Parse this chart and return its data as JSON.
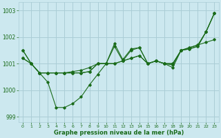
{
  "background_color": "#cce8ef",
  "grid_color": "#aacdd6",
  "line_color": "#1a6b1a",
  "xlabel": "Graphe pression niveau de la mer (hPa)",
  "ylim": [
    998.8,
    1003.3
  ],
  "xlim": [
    -0.5,
    23.5
  ],
  "yticks": [
    999,
    1000,
    1001,
    1002,
    1003
  ],
  "xticks": [
    0,
    1,
    2,
    3,
    4,
    5,
    6,
    7,
    8,
    9,
    10,
    11,
    12,
    13,
    14,
    15,
    16,
    17,
    18,
    19,
    20,
    21,
    22,
    23
  ],
  "series": [
    [
      1001.5,
      1001.0,
      1000.65,
      1000.65,
      1000.65,
      1000.65,
      1000.65,
      1000.65,
      1000.7,
      1001.0,
      1001.0,
      1001.0,
      1001.1,
      1001.2,
      1001.3,
      1001.0,
      1001.1,
      1001.0,
      1001.0,
      1001.5,
      1001.6,
      1001.7,
      1001.8,
      1001.9
    ],
    [
      1001.2,
      1001.0,
      1000.65,
      1000.65,
      1000.65,
      1000.65,
      1000.7,
      1000.75,
      1000.85,
      1001.0,
      1001.0,
      1001.75,
      1001.15,
      1001.55,
      1001.6,
      1001.0,
      1001.1,
      1001.0,
      1000.95,
      1001.5,
      1001.55,
      1001.65,
      1002.2,
      1002.9
    ],
    [
      1001.5,
      1001.0,
      1000.65,
      1000.3,
      999.35,
      999.35,
      999.5,
      999.75,
      1000.2,
      1000.6,
      1001.0,
      1001.65,
      1001.1,
      1001.5,
      1001.6,
      1001.0,
      1001.1,
      1001.0,
      1000.85,
      1001.5,
      1001.55,
      1001.65,
      1002.2,
      1002.9
    ],
    [
      1001.2,
      1001.0,
      1000.65,
      1000.65,
      1000.65,
      1000.65,
      1000.65,
      1000.65,
      1000.7,
      1001.0,
      1001.0,
      1001.0,
      1001.1,
      1001.2,
      1001.3,
      1001.0,
      1001.1,
      1001.0,
      1001.0,
      1001.5,
      1001.6,
      1001.7,
      1002.2,
      1002.9
    ]
  ]
}
